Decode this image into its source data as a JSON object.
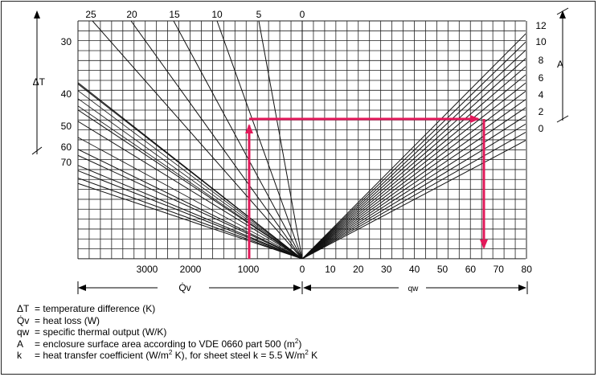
{
  "diagram": {
    "top_dt_labels": [
      "25",
      "20",
      "15",
      "10",
      "5",
      "0"
    ],
    "left_dt_labels": [
      "30",
      "40",
      "50",
      "60",
      "70"
    ],
    "dt_axis_label": "ΔT",
    "right_a_labels": [
      "12",
      "10",
      "8",
      "6",
      "4",
      "2",
      "0"
    ],
    "a_axis_label": "A",
    "qv_tick_labels": [
      "3000",
      "2000",
      "1000",
      "0"
    ],
    "qw_tick_labels": [
      "10",
      "20",
      "30",
      "40",
      "50",
      "60",
      "70",
      "80"
    ],
    "qv_axis_label": "Q̇v",
    "qw_axis_label": "qw",
    "arrow_color": "#e2195a",
    "example_path": {
      "qv": 1000,
      "a": 2,
      "qw": 65
    }
  },
  "legend": [
    {
      "symbol": "ΔT",
      "text": "= temperature difference (K)"
    },
    {
      "symbol": "Q̇v",
      "text": "= heat loss (W)"
    },
    {
      "symbol": "qw",
      "text": "= specific thermal output (W/K)"
    },
    {
      "symbol": "A",
      "text": "= enclosure surface area according to VDE 0660 part 500 (m",
      "sup": "2",
      "tail": ")"
    },
    {
      "symbol": "k",
      "text": "= heat transfer coefficient (W/m",
      "sup": "2",
      "tail": " K), for sheet steel k = 5.5 W/m",
      "sup2": "2",
      "tail2": " K"
    }
  ]
}
